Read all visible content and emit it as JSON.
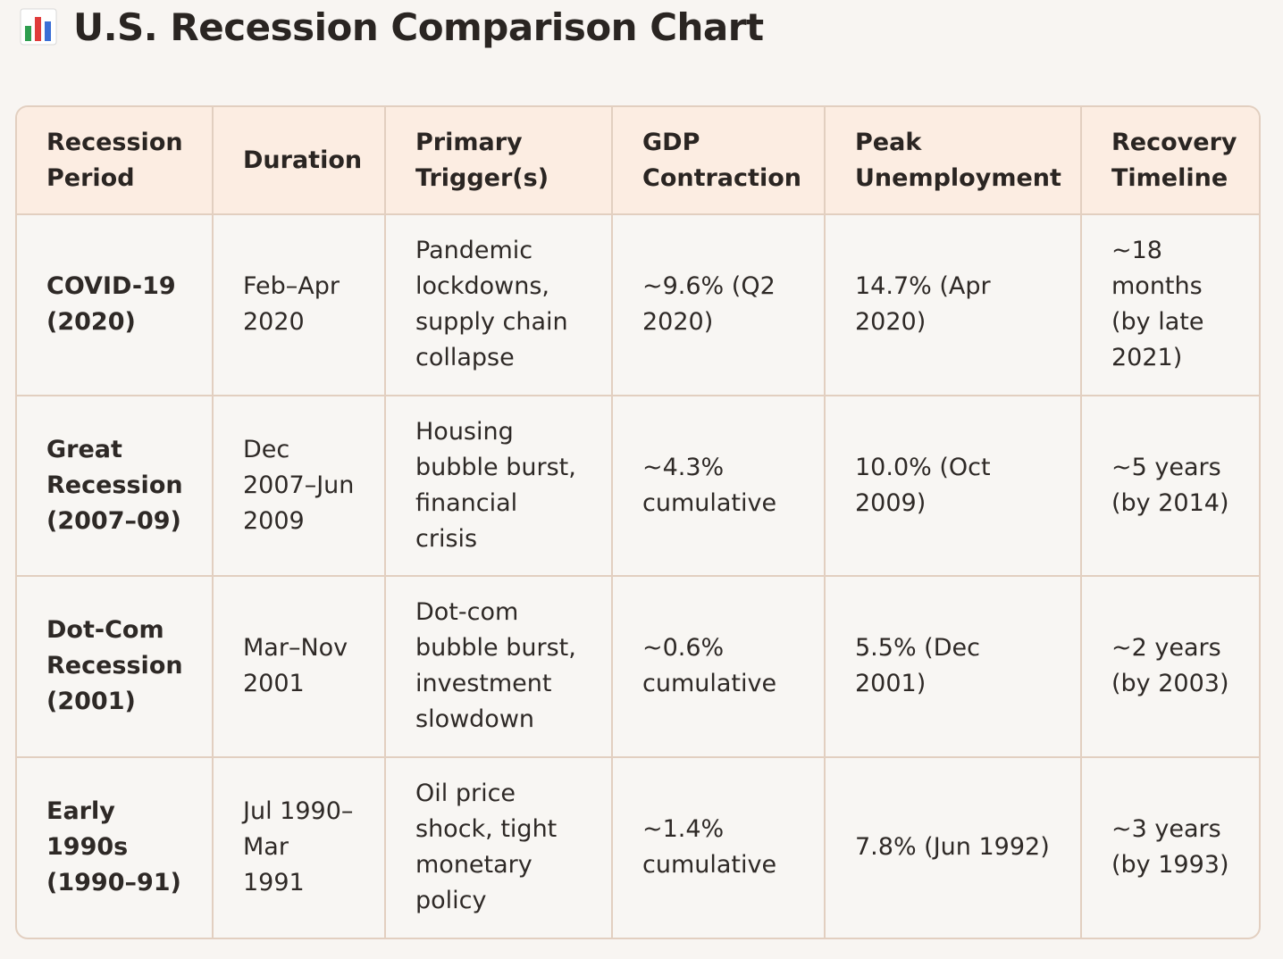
{
  "title": "U.S. Recession Comparison Chart",
  "title_icon": "bar-chart-icon",
  "colors": {
    "header_bg": "#fcede2",
    "border": "#e2cfc0",
    "page_bg": "#f8f5f2",
    "icon_bars": [
      "#2e9e4f",
      "#e03b3b",
      "#3b6fd6"
    ]
  },
  "table": {
    "headers": [
      "Recession Period",
      "Duration",
      "Primary Trigger(s)",
      "GDP Contraction",
      "Peak Unemployment",
      "Recovery Timeline"
    ],
    "rows": [
      {
        "period": "COVID-19 (2020)",
        "duration": "Feb–Apr 2020",
        "trigger": "Pandemic lockdowns, supply chain collapse",
        "gdp": "~9.6% (Q2 2020)",
        "unemployment": "14.7% (Apr 2020)",
        "recovery": "~18 months (by late 2021)"
      },
      {
        "period": "Great Recession (2007–09)",
        "duration": "Dec 2007–Jun 2009",
        "trigger": "Housing bubble burst, financial crisis",
        "gdp": "~4.3% cumulative",
        "unemployment": "10.0% (Oct 2009)",
        "recovery": "~5 years (by 2014)"
      },
      {
        "period": "Dot-Com Recession (2001)",
        "duration": "Mar–Nov 2001",
        "trigger": "Dot-com bubble burst, investment slowdown",
        "gdp": "~0.6% cumulative",
        "unemployment": "5.5% (Dec 2001)",
        "recovery": "~2 years (by 2003)"
      },
      {
        "period": "Early 1990s (1990–91)",
        "duration": "Jul 1990–Mar 1991",
        "trigger": "Oil price shock, tight monetary policy",
        "gdp": "~1.4% cumulative",
        "unemployment": "7.8% (Jun 1992)",
        "recovery": "~3 years (by 1993)"
      }
    ]
  }
}
